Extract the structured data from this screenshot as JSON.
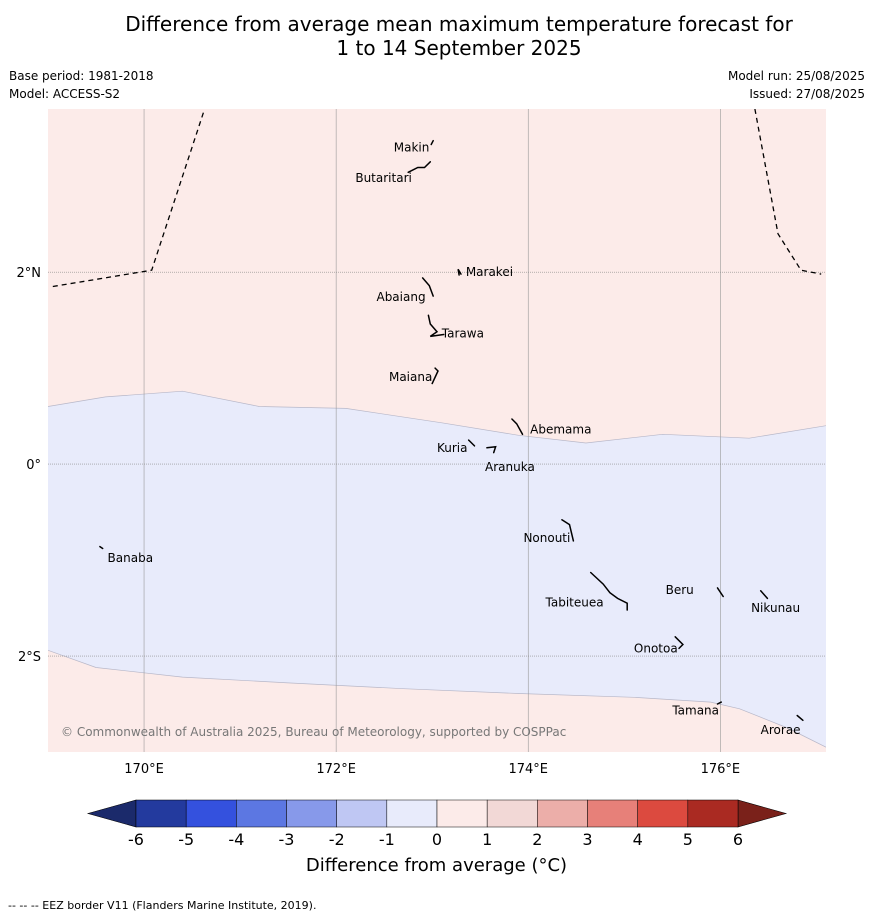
{
  "title_line1": "Difference from average mean maximum temperature forecast for",
  "title_line2": "1 to 14 September 2025",
  "meta": {
    "base_period": "Base period: 1981-2018",
    "model": "Model: ACCESS-S2",
    "model_run": "Model run: 25/08/2025",
    "issued": "Issued: 27/08/2025"
  },
  "map": {
    "lon_range": [
      169,
      177.1
    ],
    "lat_range": [
      -3,
      3.7
    ],
    "lon_ticks": [
      {
        "value": 170,
        "label": "170°E"
      },
      {
        "value": 172,
        "label": "172°E"
      },
      {
        "value": 174,
        "label": "174°E"
      },
      {
        "value": 176,
        "label": "176°E"
      }
    ],
    "lat_ticks": [
      {
        "value": 2,
        "label": "2°N"
      },
      {
        "value": 0,
        "label": "0°"
      },
      {
        "value": -2,
        "label": "2°S"
      }
    ],
    "colors": {
      "warm_fill": "#fcebe9",
      "cool_fill": "#e8ebfb",
      "grid": "#999999"
    },
    "upper_boundary": [
      [
        169,
        0.6
      ],
      [
        169.6,
        0.7
      ],
      [
        170.4,
        0.76
      ],
      [
        171.2,
        0.6
      ],
      [
        172.1,
        0.58
      ],
      [
        173.1,
        0.43
      ],
      [
        173.9,
        0.3
      ],
      [
        174.6,
        0.22
      ],
      [
        175.4,
        0.31
      ],
      [
        176.3,
        0.27
      ],
      [
        177.1,
        0.4
      ]
    ],
    "lower_boundary": [
      [
        169,
        -1.94
      ],
      [
        169.5,
        -2.12
      ],
      [
        170.4,
        -2.22
      ],
      [
        171.5,
        -2.28
      ],
      [
        172.7,
        -2.34
      ],
      [
        173.9,
        -2.39
      ],
      [
        175.1,
        -2.43
      ],
      [
        175.9,
        -2.48
      ],
      [
        176.2,
        -2.55
      ],
      [
        176.7,
        -2.75
      ],
      [
        177.1,
        -2.95
      ]
    ],
    "eez_lines": [
      [
        [
          169.05,
          1.85
        ],
        [
          170.08,
          2.02
        ],
        [
          170.63,
          3.7
        ]
      ],
      [
        [
          176.36,
          3.7
        ],
        [
          176.6,
          2.4
        ],
        [
          176.84,
          2.02
        ],
        [
          177.05,
          1.98
        ]
      ]
    ],
    "islands": [
      {
        "name": "Makin",
        "lon": 173.0,
        "lat": 3.35,
        "label_lon": 172.6,
        "label_lat": 3.3,
        "shape": [
          [
            172.99,
            3.33
          ],
          [
            173.01,
            3.37
          ]
        ]
      },
      {
        "name": "Butaritari",
        "lon": 172.9,
        "lat": 3.07,
        "label_lon": 172.2,
        "label_lat": 2.98,
        "shape": [
          [
            172.75,
            3.04
          ],
          [
            172.85,
            3.09
          ],
          [
            172.92,
            3.09
          ],
          [
            172.98,
            3.15
          ]
        ]
      },
      {
        "name": "Marakei",
        "lon": 173.3,
        "lat": 2.0,
        "label_lon": 173.35,
        "label_lat": 2.0,
        "shape": [
          [
            173.28,
            1.97
          ],
          [
            173.27,
            2.03
          ],
          [
            173.3,
            1.98
          ]
        ]
      },
      {
        "name": "Abaiang",
        "lon": 172.95,
        "lat": 1.8,
        "label_lon": 172.42,
        "label_lat": 1.74,
        "shape": [
          [
            172.9,
            1.94
          ],
          [
            172.97,
            1.86
          ],
          [
            173.01,
            1.75
          ]
        ]
      },
      {
        "name": "Tarawa",
        "lon": 173.0,
        "lat": 1.4,
        "label_lon": 173.1,
        "label_lat": 1.36,
        "shape": [
          [
            172.96,
            1.55
          ],
          [
            172.98,
            1.46
          ],
          [
            173.05,
            1.38
          ],
          [
            172.98,
            1.33
          ],
          [
            173.12,
            1.35
          ]
        ]
      },
      {
        "name": "Maiana",
        "lon": 173.03,
        "lat": 0.93,
        "label_lon": 172.55,
        "label_lat": 0.91,
        "shape": [
          [
            173.03,
            1.0
          ],
          [
            173.06,
            0.97
          ],
          [
            173.0,
            0.84
          ]
        ]
      },
      {
        "name": "Abemama",
        "lon": 173.9,
        "lat": 0.4,
        "label_lon": 174.02,
        "label_lat": 0.36,
        "shape": [
          [
            173.83,
            0.47
          ],
          [
            173.88,
            0.42
          ],
          [
            173.94,
            0.31
          ]
        ]
      },
      {
        "name": "Kuria",
        "lon": 173.42,
        "lat": 0.22,
        "label_lon": 173.05,
        "label_lat": 0.17,
        "shape": [
          [
            173.38,
            0.25
          ],
          [
            173.44,
            0.19
          ]
        ]
      },
      {
        "name": "Aranuka",
        "lon": 173.62,
        "lat": 0.17,
        "label_lon": 173.55,
        "label_lat": -0.03,
        "shape": [
          [
            173.57,
            0.17
          ],
          [
            173.66,
            0.18
          ],
          [
            173.64,
            0.12
          ]
        ]
      },
      {
        "name": "Nonouti",
        "lon": 174.4,
        "lat": -0.67,
        "label_lon": 173.95,
        "label_lat": -0.77,
        "shape": [
          [
            174.35,
            -0.58
          ],
          [
            174.43,
            -0.63
          ],
          [
            174.47,
            -0.8
          ]
        ]
      },
      {
        "name": "Tabiteuea",
        "lon": 174.9,
        "lat": -1.3,
        "label_lon": 174.18,
        "label_lat": -1.44,
        "shape": [
          [
            174.65,
            -1.13
          ],
          [
            174.78,
            -1.25
          ],
          [
            174.85,
            -1.34
          ],
          [
            174.93,
            -1.4
          ],
          [
            175.03,
            -1.45
          ],
          [
            175.03,
            -1.52
          ]
        ]
      },
      {
        "name": "Beru",
        "lon": 175.98,
        "lat": -1.33,
        "label_lon": 175.43,
        "label_lat": -1.31,
        "shape": [
          [
            175.97,
            -1.29
          ],
          [
            176.03,
            -1.38
          ]
        ]
      },
      {
        "name": "Nikunau",
        "lon": 176.45,
        "lat": -1.35,
        "label_lon": 176.32,
        "label_lat": -1.5,
        "shape": [
          [
            176.42,
            -1.32
          ],
          [
            176.49,
            -1.4
          ]
        ]
      },
      {
        "name": "Onotoa",
        "lon": 175.58,
        "lat": -1.87,
        "label_lon": 175.1,
        "label_lat": -1.92,
        "shape": [
          [
            175.53,
            -1.8
          ],
          [
            175.61,
            -1.88
          ],
          [
            175.57,
            -1.92
          ]
        ]
      },
      {
        "name": "Tamana",
        "lon": 175.98,
        "lat": -2.5,
        "label_lon": 175.5,
        "label_lat": -2.57,
        "shape": [
          [
            175.97,
            -2.5
          ],
          [
            176.01,
            -2.48
          ]
        ]
      },
      {
        "name": "Arorae",
        "lon": 176.82,
        "lat": -2.64,
        "label_lon": 176.42,
        "label_lat": -2.77,
        "shape": [
          [
            176.8,
            -2.62
          ],
          [
            176.86,
            -2.67
          ]
        ]
      },
      {
        "name": "Banaba",
        "lon": 169.55,
        "lat": -0.87,
        "label_lon": 169.62,
        "label_lat": -0.98,
        "shape": [
          [
            169.54,
            -0.86
          ],
          [
            169.57,
            -0.88
          ]
        ]
      }
    ],
    "copyright": "© Commonwealth of Australia 2025, Bureau of Meteorology, supported by COSPPac"
  },
  "colorbar": {
    "ticks": [
      "-6",
      "-5",
      "-4",
      "-3",
      "-2",
      "-1",
      "0",
      "1",
      "2",
      "3",
      "4",
      "5",
      "6"
    ],
    "colors": [
      "#233a9e",
      "#3451de",
      "#5c77e2",
      "#8799ea",
      "#bfc7f3",
      "#e8ebfb",
      "#fcebe9",
      "#f2d8d6",
      "#ecaea9",
      "#e78079",
      "#dc4a3f",
      "#aa2a22"
    ],
    "under_color": "#1b2a6b",
    "over_color": "#7a211a",
    "label": "Difference from average (°C)"
  },
  "footer": "--  --  -- EEZ border V11 (Flanders Marine Institute, 2019)."
}
